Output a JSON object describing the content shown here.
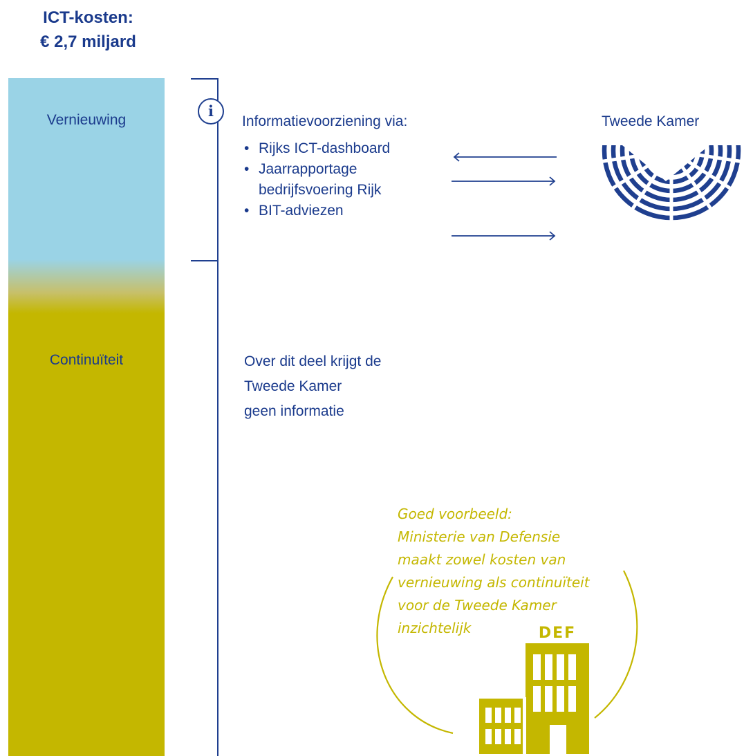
{
  "header": {
    "title_line1": "ICT-kosten:",
    "title_line2": "€ 2,7 miljard"
  },
  "bar": {
    "top_label": "Vernieuwing",
    "bottom_label": "Continuïteit",
    "top_color": "#9ad3e6",
    "bottom_color": "#c4b700"
  },
  "info": {
    "icon": "info-icon",
    "icon_glyph": "i",
    "heading": "Informatievoorziening via:",
    "items": [
      "Rijks ICT-dashboard",
      "Jaarrapportage",
      "bedrijfsvoering Rijk",
      "BIT-adviezen"
    ]
  },
  "parliament": {
    "label": "Tweede Kamer",
    "icon": "parliament-icon"
  },
  "no_info": {
    "lines": [
      "Over dit deel krijgt de",
      "Tweede Kamer",
      "geen informatie"
    ]
  },
  "example": {
    "lines": [
      "Goed voorbeeld:",
      "Ministerie van Defensie",
      "maakt zowel kosten van",
      "vernieuwing als continuïteit",
      "voor de Tweede Kamer",
      "inzichtelijk"
    ],
    "building_sign": "DEF",
    "icon": "building-icon",
    "accent_color": "#c4b700"
  },
  "line_color": "#1f3f8f"
}
